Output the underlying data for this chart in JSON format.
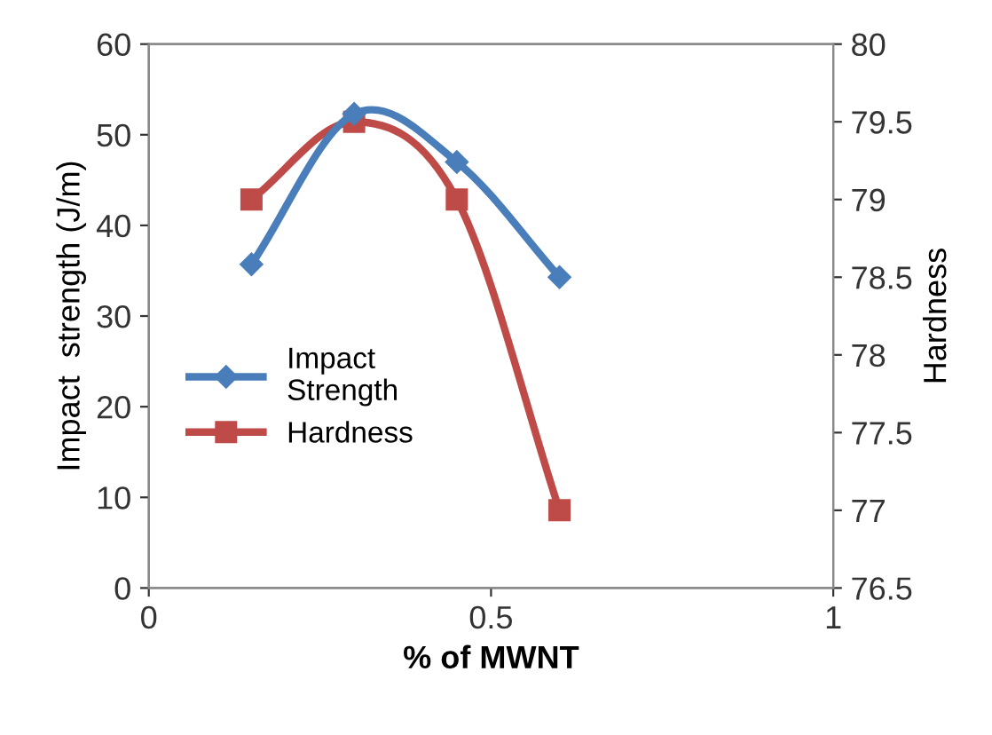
{
  "chart_data": {
    "type": "line",
    "xlabel": "% of MWNT",
    "ylabel": "Impact  strength (J/m)",
    "y2label": "Hardness",
    "x": [
      0.15,
      0.3,
      0.45,
      0.6
    ],
    "series": [
      {
        "name": "Impact Strength",
        "color": "#4a7ebb",
        "marker": "diamond",
        "values": [
          35.7,
          52.3,
          47,
          34.3
        ]
      },
      {
        "name": "Hardness",
        "color": "#be4b48",
        "marker": "square",
        "axis": "y2",
        "values": [
          79,
          79.5,
          79,
          77
        ]
      }
    ],
    "xlim": [
      0,
      1
    ],
    "xticks": [
      0,
      0.5,
      1
    ],
    "ylim": [
      0,
      60
    ],
    "yticks": [
      0,
      10,
      20,
      30,
      40,
      50,
      60
    ],
    "y2lim": [
      76.5,
      80
    ],
    "y2ticks": [
      76.5,
      77,
      77.5,
      78,
      78.5,
      79,
      79.5,
      80
    ],
    "grid": false,
    "legend": "center left",
    "line_style": "solid"
  }
}
